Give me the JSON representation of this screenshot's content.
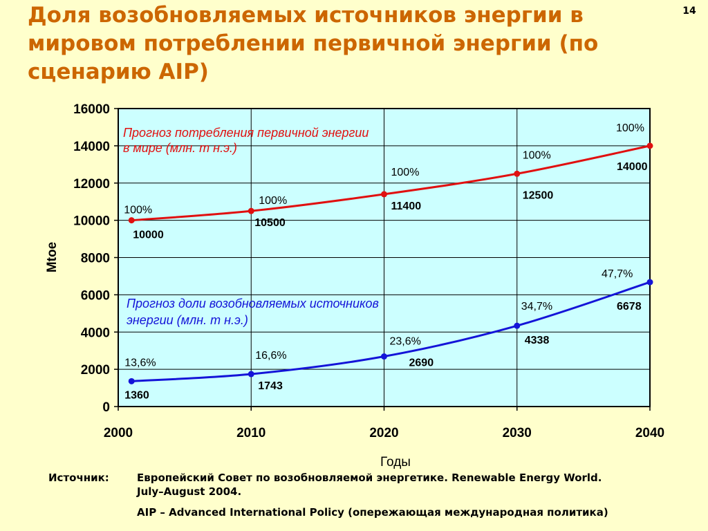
{
  "slide": {
    "title": "Доля возобновляемых источников энергии в мировом потреблении первичной энергии (по сценарию AIP)",
    "page_number": "14"
  },
  "chart_data": {
    "type": "line",
    "x": [
      2001,
      2010,
      2020,
      2030,
      2040
    ],
    "xticks": [
      "2000",
      "2010",
      "2020",
      "2030",
      "2040"
    ],
    "xlim": [
      2000,
      2040
    ],
    "ylim": [
      0,
      16000
    ],
    "yticks": [
      "0",
      "2000",
      "4000",
      "6000",
      "8000",
      "10000",
      "12000",
      "14000",
      "16000"
    ],
    "xlabel": "Годы",
    "ylabel": "Mtoe",
    "grid": true,
    "plot_background": "#ccffff",
    "series": [
      {
        "name": "Прогноз потребления первичной энергии в мире (млн. т н.э.)",
        "name_lines": [
          "Прогноз потребления первичной энергии",
          "в мире (млн. т н.э.)"
        ],
        "color": "#e01010",
        "values": [
          10000,
          10500,
          11400,
          12500,
          14000
        ],
        "value_labels": [
          "10000",
          "10500",
          "11400",
          "12500",
          "14000"
        ],
        "share_labels": [
          "100%",
          "100%",
          "100%",
          "100%",
          "100%"
        ]
      },
      {
        "name": "Прогноз доли возобновляемых источников энергии (млн. т н.э.)",
        "name_lines": [
          "Прогноз доли возобновляемых источников",
          "энергии (млн. т н.э.)"
        ],
        "color": "#1414d8",
        "values": [
          1360,
          1743,
          2690,
          4338,
          6678
        ],
        "value_labels": [
          "1360",
          "1743",
          "2690",
          "4338",
          "6678"
        ],
        "share_labels": [
          "13,6%",
          "16,6%",
          "23,6%",
          "34,7%",
          "47,7%"
        ]
      }
    ]
  },
  "source": {
    "label": "Источник:",
    "line1": "Европейский Совет по возобновляемой энергетике. Renewable Energy World.",
    "line2": "July–August 2004.",
    "line3": "AIP – Advanced International Policy (опережающая международная политика)"
  }
}
